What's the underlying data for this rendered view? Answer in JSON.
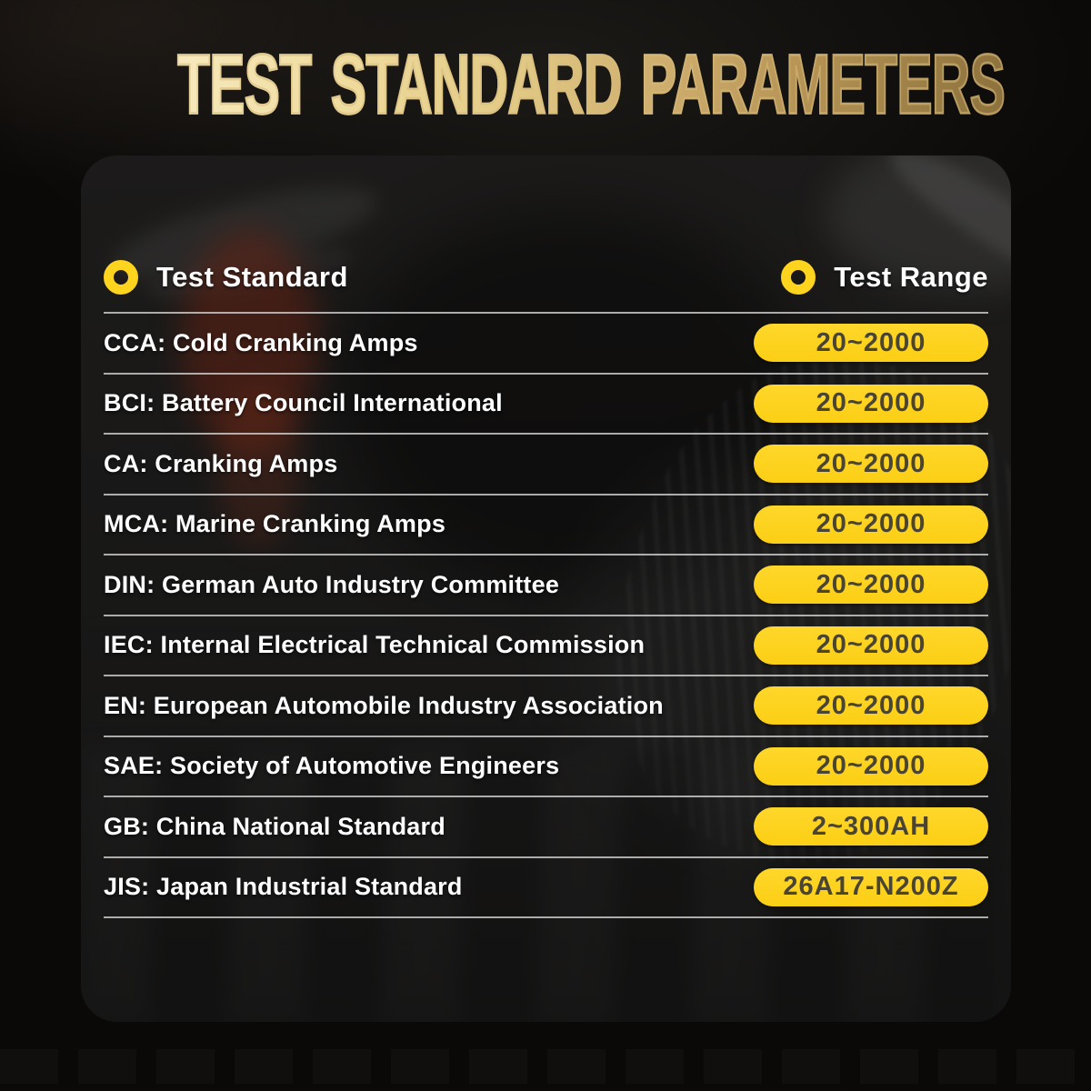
{
  "title": "TEST STANDARD PARAMETERS",
  "table": {
    "standard_header": "Test Standard",
    "range_header": "Test Range",
    "rows": [
      {
        "standard": "CCA: Cold Cranking Amps",
        "range": "20~2000"
      },
      {
        "standard": "BCI: Battery Council International",
        "range": "20~2000"
      },
      {
        "standard": "CA: Cranking Amps",
        "range": "20~2000"
      },
      {
        "standard": "MCA: Marine Cranking Amps",
        "range": "20~2000"
      },
      {
        "standard": "DIN: German Auto Industry Committee",
        "range": "20~2000"
      },
      {
        "standard": "IEC: Internal Electrical Technical Commission",
        "range": "20~2000"
      },
      {
        "standard": "EN: European Automobile Industry Association",
        "range": "20~2000"
      },
      {
        "standard": "SAE: Society of Automotive Engineers",
        "range": "20~2000"
      },
      {
        "standard": "GB: China National Standard",
        "range": "2~300AH"
      },
      {
        "standard": "JIS: Japan Industrial Standard",
        "range": "26A17-N200Z"
      }
    ]
  },
  "icons": {
    "standard_bullet": "ring-icon",
    "range_bullet": "ring-icon"
  },
  "colors": {
    "accent_yellow": "#ffd41e",
    "pill_text": "#4a4432",
    "row_text": "#ffffff",
    "divider": "rgba(210,210,210,0.8)",
    "title_gold_light": "#f6e8ba",
    "title_gold_dark": "#8d713c",
    "background": "#0a0908"
  },
  "chart_data": {
    "type": "table",
    "title": "TEST STANDARD PARAMETERS",
    "columns": [
      "Test Standard",
      "Test Range"
    ],
    "rows": [
      [
        "CCA: Cold Cranking Amps",
        "20~2000"
      ],
      [
        "BCI: Battery Council International",
        "20~2000"
      ],
      [
        "CA: Cranking Amps",
        "20~2000"
      ],
      [
        "MCA: Marine Cranking Amps",
        "20~2000"
      ],
      [
        "DIN: German Auto Industry Committee",
        "20~2000"
      ],
      [
        "IEC: Internal Electrical Technical Commission",
        "20~2000"
      ],
      [
        "EN: European Automobile Industry Association",
        "20~2000"
      ],
      [
        "SAE: Society of Automotive Engineers",
        "20~2000"
      ],
      [
        "GB: China National Standard",
        "2~300AH"
      ],
      [
        "JIS: Japan Industrial Standard",
        "26A17-N200Z"
      ]
    ],
    "legend_position": "none",
    "grid": "row-dividers"
  }
}
